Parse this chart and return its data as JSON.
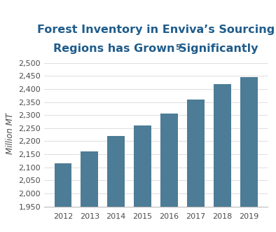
{
  "years": [
    "2012",
    "2013",
    "2014",
    "2015",
    "2016",
    "2017",
    "2018",
    "2019"
  ],
  "values": [
    2115,
    2160,
    2220,
    2260,
    2305,
    2360,
    2420,
    2445
  ],
  "bar_color": "#4d7c96",
  "title_line1": "Forest Inventory in Enviva’s Sourcing",
  "title_line2": "Regions has Grown",
  "title_superscript": "5",
  "title_line2_end": " Significantly",
  "ylabel": "Million MT",
  "ylim_min": 1950,
  "ylim_max": 2510,
  "yticks": [
    1950,
    2000,
    2050,
    2100,
    2150,
    2200,
    2250,
    2300,
    2350,
    2400,
    2450,
    2500
  ],
  "title_color": "#1f5c8b",
  "axis_label_color": "#4a4a4a",
  "tick_color": "#4a4a4a",
  "background_color": "#ffffff",
  "title_fontsize": 11.5,
  "ylabel_fontsize": 8.5,
  "tick_fontsize": 8
}
